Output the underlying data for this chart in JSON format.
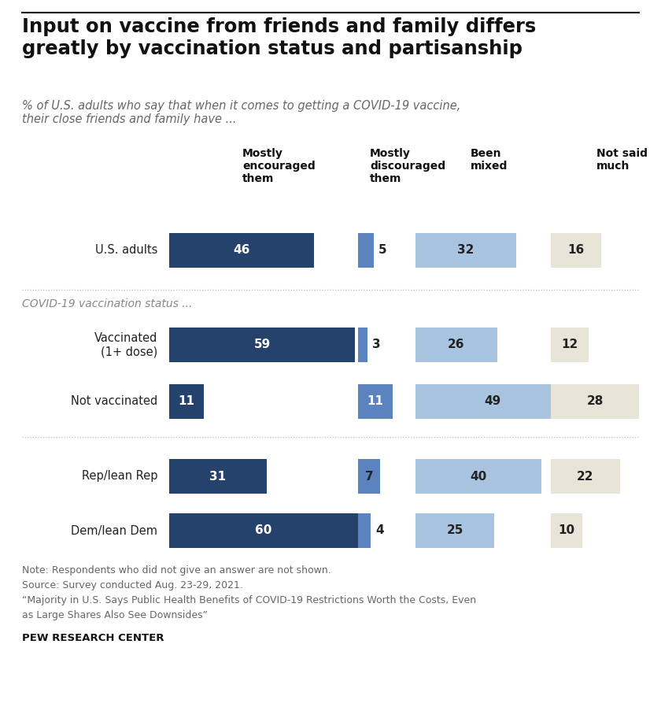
{
  "title": "Input on vaccine from friends and family differs\ngreatly by vaccination status and partisanship",
  "subtitle": "% of U.S. adults who say that when it comes to getting a COVID-19 vaccine,\ntheir close friends and family have ...",
  "col_headers": [
    "Mostly\nencouraged\nthem",
    "Mostly\ndiscouraged\nthem",
    "Been\nmixed",
    "Not said\nmuch"
  ],
  "rows": [
    {
      "label": "U.S. adults",
      "values": [
        46,
        5,
        32,
        16
      ],
      "group": "main",
      "label_lines": 1
    },
    {
      "label": "Vaccinated\n(1+ dose)",
      "values": [
        59,
        3,
        26,
        12
      ],
      "group": "vacc",
      "label_lines": 2
    },
    {
      "label": "Not vaccinated",
      "values": [
        11,
        11,
        49,
        28
      ],
      "group": "vacc",
      "label_lines": 1
    },
    {
      "label": "Rep/lean Rep",
      "values": [
        31,
        7,
        40,
        22
      ],
      "group": "party",
      "label_lines": 1
    },
    {
      "label": "Dem/lean Dem",
      "values": [
        60,
        4,
        25,
        10
      ],
      "group": "party",
      "label_lines": 1
    }
  ],
  "col_colors": [
    "#24426c",
    "#5b83bf",
    "#a8c4e0",
    "#e8e4d8"
  ],
  "note_lines": [
    "Note: Respondents who did not give an answer are not shown.",
    "Source: Survey conducted Aug. 23-29, 2021.",
    "“Majority in U.S. Says Public Health Benefits of COVID-19 Restrictions Worth the Costs, Even",
    "as Large Shares Also See Downsides”"
  ],
  "source_label": "PEW RESEARCH CENTER",
  "background_color": "#ffffff",
  "title_color": "#111111",
  "subtitle_color": "#666666",
  "label_color": "#222222",
  "section_label_color": "#888888",
  "sep_color": "#bbbbbb"
}
